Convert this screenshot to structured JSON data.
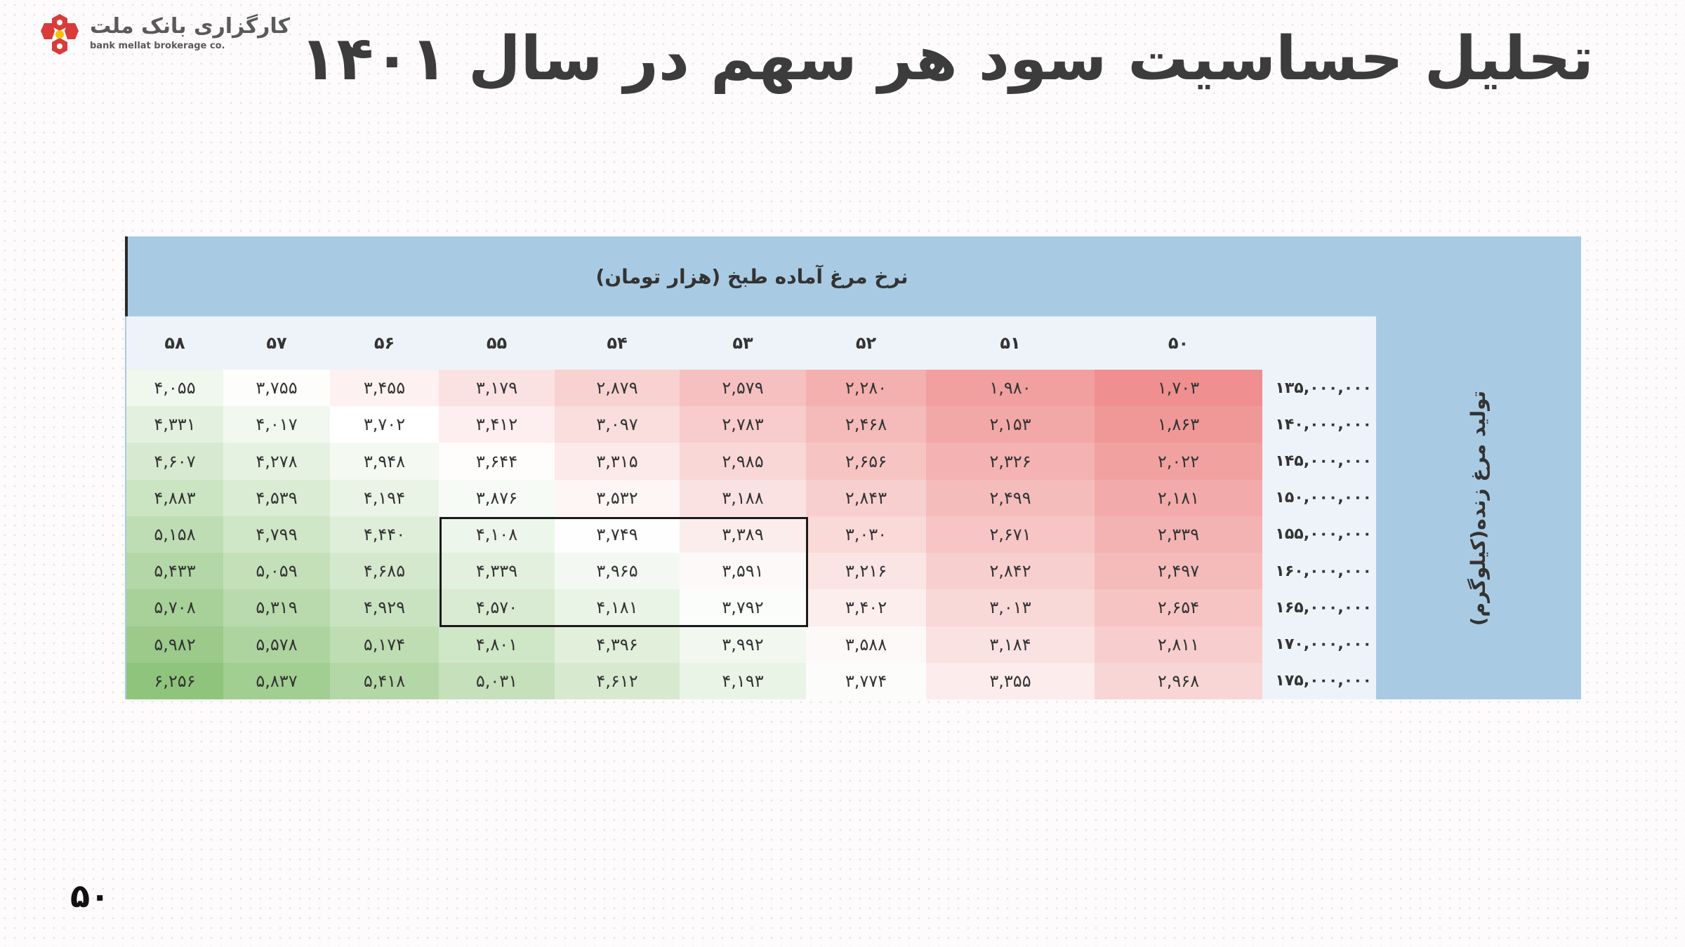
{
  "brand": {
    "name_fa": "کارگزاری بانک ملت",
    "name_en": "bank mellat brokerage co."
  },
  "title": "تحلیل حساسیت سود هر سهم در سال ۱۴۰۱",
  "table": {
    "col_header": "نرخ مرغ آماده طبخ (هزار تومان)",
    "row_header": "تولید مرغ زنده(کیلوگرم)",
    "columns": [
      "۵۸",
      "۵۷",
      "۵۶",
      "۵۵",
      "۵۴",
      "۵۳",
      "۵۲",
      "۵۱",
      "۵۰"
    ],
    "rows": [
      {
        "label": "۱۳۵,۰۰۰,۰۰۰",
        "values": [
          "۴,۰۵۵",
          "۳,۷۵۵",
          "۳,۴۵۵",
          "۳,۱۷۹",
          "۲,۸۷۹",
          "۲,۵۷۹",
          "۲,۲۸۰",
          "۱,۹۸۰",
          "۱,۷۰۳"
        ]
      },
      {
        "label": "۱۴۰,۰۰۰,۰۰۰",
        "values": [
          "۴,۳۳۱",
          "۴,۰۱۷",
          "۳,۷۰۲",
          "۳,۴۱۲",
          "۳,۰۹۷",
          "۲,۷۸۳",
          "۲,۴۶۸",
          "۲,۱۵۳",
          "۱,۸۶۳"
        ]
      },
      {
        "label": "۱۴۵,۰۰۰,۰۰۰",
        "values": [
          "۴,۶۰۷",
          "۴,۲۷۸",
          "۳,۹۴۸",
          "۳,۶۴۴",
          "۳,۳۱۵",
          "۲,۹۸۵",
          "۲,۶۵۶",
          "۲,۳۲۶",
          "۲,۰۲۲"
        ]
      },
      {
        "label": "۱۵۰,۰۰۰,۰۰۰",
        "values": [
          "۴,۸۸۳",
          "۴,۵۳۹",
          "۴,۱۹۴",
          "۳,۸۷۶",
          "۳,۵۳۲",
          "۳,۱۸۸",
          "۲,۸۴۳",
          "۲,۴۹۹",
          "۲,۱۸۱"
        ]
      },
      {
        "label": "۱۵۵,۰۰۰,۰۰۰",
        "values": [
          "۵,۱۵۸",
          "۴,۷۹۹",
          "۴,۴۴۰",
          "۴,۱۰۸",
          "۳,۷۴۹",
          "۳,۳۸۹",
          "۳,۰۳۰",
          "۲,۶۷۱",
          "۲,۳۳۹"
        ]
      },
      {
        "label": "۱۶۰,۰۰۰,۰۰۰",
        "values": [
          "۵,۴۳۳",
          "۵,۰۵۹",
          "۴,۶۸۵",
          "۴,۳۳۹",
          "۳,۹۶۵",
          "۳,۵۹۱",
          "۳,۲۱۶",
          "۲,۸۴۲",
          "۲,۴۹۷"
        ]
      },
      {
        "label": "۱۶۵,۰۰۰,۰۰۰",
        "values": [
          "۵,۷۰۸",
          "۵,۳۱۹",
          "۴,۹۲۹",
          "۴,۵۷۰",
          "۴,۱۸۱",
          "۳,۷۹۲",
          "۳,۴۰۲",
          "۳,۰۱۳",
          "۲,۶۵۴"
        ]
      },
      {
        "label": "۱۷۰,۰۰۰,۰۰۰",
        "values": [
          "۵,۹۸۲",
          "۵,۵۷۸",
          "۵,۱۷۴",
          "۴,۸۰۱",
          "۴,۳۹۶",
          "۳,۹۹۲",
          "۳,۵۸۸",
          "۳,۱۸۴",
          "۲,۸۱۱"
        ]
      },
      {
        "label": "۱۷۵,۰۰۰,۰۰۰",
        "values": [
          "۶,۲۵۶",
          "۵,۸۳۷",
          "۵,۴۱۸",
          "۵,۰۳۱",
          "۴,۶۱۲",
          "۴,۱۹۳",
          "۳,۷۷۴",
          "۳,۳۵۵",
          "۲,۹۶۸"
        ]
      }
    ],
    "heatmap_colors": {
      "low": "#ef8f8f",
      "mid": "#ffffff",
      "high": "#8fc47c"
    },
    "highlighted_block": {
      "columns": [
        "۵۵",
        "۵۴",
        "۵۳"
      ],
      "rows": [
        "۱۵۵,۰۰۰,۰۰۰",
        "۱۶۰,۰۰۰,۰۰۰",
        "۱۶۵,۰۰۰,۰۰۰"
      ]
    }
  },
  "page_number": "۵۰"
}
